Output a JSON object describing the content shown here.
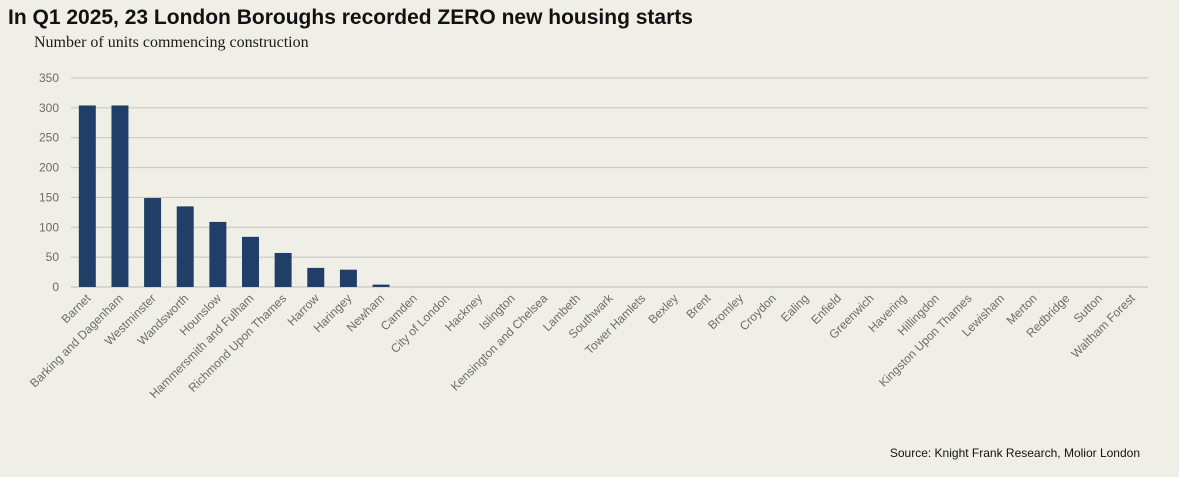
{
  "header": {
    "title": "In Q1 2025, 23 London Boroughs recorded ZERO new housing starts",
    "subtitle": "Number of units commencing construction"
  },
  "footer": {
    "source": "Source: Knight Frank Research, Molior London"
  },
  "colors": {
    "bar": "#1f3f68",
    "grid": "#c4c4bc",
    "axis": "#bdbdb5",
    "background": "#f0efe7"
  },
  "chart_data": {
    "type": "bar",
    "title": "In Q1 2025, 23 London Boroughs recorded ZERO new housing starts",
    "subtitle": "Number of units commencing construction",
    "xlabel": "",
    "ylabel": "",
    "ylim": [
      0,
      350
    ],
    "yticks": [
      0,
      50,
      100,
      150,
      200,
      250,
      300,
      350
    ],
    "grid": true,
    "legend": "none",
    "categories": [
      "Barnet",
      "Barking and Dagenham",
      "Westminster",
      "Wandsworth",
      "Hounslow",
      "Hammersmith and Fulham",
      "Richmond Upon Thames",
      "Harrow",
      "Haringey",
      "Newham",
      "Camden",
      "City of London",
      "Hackney",
      "Islington",
      "Kensington and Chelsea",
      "Lambeth",
      "Southwark",
      "Tower Hamlets",
      "Bexley",
      "Brent",
      "Bromley",
      "Croydon",
      "Ealing",
      "Enfield",
      "Greenwich",
      "Havering",
      "Hillingdon",
      "Kingston Upon Thames",
      "Lewisham",
      "Merton",
      "Redbridge",
      "Sutton",
      "Waltham Forest"
    ],
    "values": [
      304,
      304,
      149,
      135,
      109,
      84,
      57,
      32,
      29,
      4,
      0,
      0,
      0,
      0,
      0,
      0,
      0,
      0,
      0,
      0,
      0,
      0,
      0,
      0,
      0,
      0,
      0,
      0,
      0,
      0,
      0,
      0,
      0
    ]
  }
}
